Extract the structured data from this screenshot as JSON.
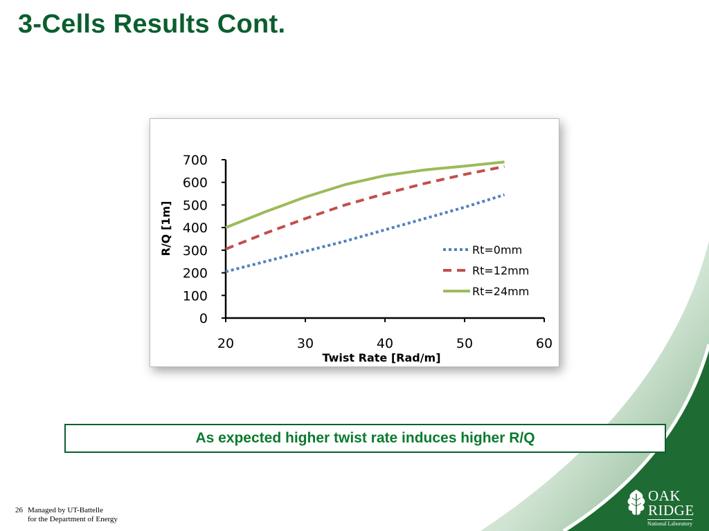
{
  "slide": {
    "title": "3-Cells Results Cont.",
    "callout": "As expected higher twist rate induces higher R/Q",
    "page_number": "26",
    "footer_line1": "Managed by UT-Battelle",
    "footer_line2": "for the Department of Energy",
    "logo": {
      "line1": "OAK",
      "line2": "RIDGE",
      "line3": "National Laboratory",
      "icon": "oak-leaf-icon"
    }
  },
  "colors": {
    "title": "#0b5e2e",
    "callout_text": "#0b7a2e",
    "callout_border": "#0b5e2e",
    "swoosh": "#1e6b33"
  },
  "chart_data": {
    "type": "line",
    "xlabel": "Twist Rate [Rad/m]",
    "ylabel": "R/Q [1m]",
    "xlim": [
      20,
      60
    ],
    "ylim": [
      0,
      700
    ],
    "xticks": [
      20,
      30,
      40,
      50,
      60
    ],
    "yticks": [
      0,
      100,
      200,
      300,
      400,
      500,
      600,
      700
    ],
    "grid": false,
    "legend_position": "right",
    "series": [
      {
        "name": "Rt=0mm",
        "color": "#4f81bd",
        "dash": "dotted",
        "x": [
          20,
          25,
          30,
          35,
          40,
          45,
          50,
          55
        ],
        "y": [
          205,
          250,
          295,
          340,
          390,
          440,
          490,
          545
        ]
      },
      {
        "name": "Rt=12mm",
        "color": "#c0504d",
        "dash": "dashed",
        "x": [
          20,
          25,
          30,
          35,
          40,
          45,
          50,
          55
        ],
        "y": [
          305,
          375,
          440,
          500,
          550,
          595,
          635,
          670
        ]
      },
      {
        "name": "Rt=24mm",
        "color": "#9bbb59",
        "dash": "solid",
        "x": [
          20,
          25,
          30,
          35,
          40,
          45,
          50,
          55
        ],
        "y": [
          400,
          470,
          535,
          590,
          630,
          655,
          672,
          690
        ]
      }
    ]
  }
}
